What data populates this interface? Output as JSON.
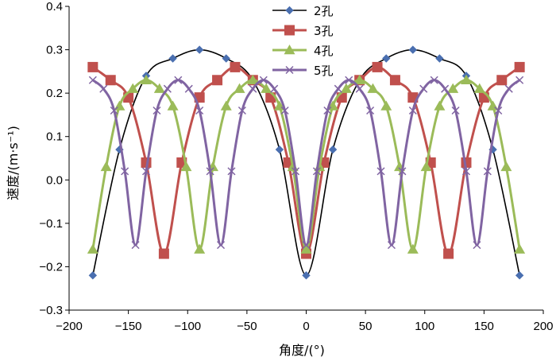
{
  "chart_data": {
    "type": "line",
    "title": "",
    "xlabel": "角度/(°)",
    "ylabel": "速度/(m·s⁻¹)",
    "xlim": [
      -200,
      200
    ],
    "ylim": [
      -0.3,
      0.4
    ],
    "xticks": [
      -200,
      -150,
      -100,
      -50,
      0,
      50,
      100,
      150,
      200
    ],
    "yticks": [
      -0.3,
      -0.2,
      -0.1,
      0.0,
      0.1,
      0.2,
      0.3,
      0.4
    ],
    "xtick_labels": [
      "−200",
      "−150",
      "−100",
      "−50",
      "0",
      "50",
      "100",
      "150",
      "200"
    ],
    "ytick_labels": [
      "−0.3",
      "−0.2",
      "−0.1",
      "0.0",
      "0.1",
      "0.2",
      "0.3",
      "0.4"
    ],
    "grid": false,
    "legend_position": "top-center",
    "series": [
      {
        "name": "2孔",
        "color": "#4a6fb0",
        "marker": "diamond",
        "x": [
          -180,
          -157.5,
          -135,
          -112.5,
          -90,
          -67.5,
          -45,
          -22.5,
          0,
          22.5,
          45,
          67.5,
          90,
          112.5,
          135,
          157.5,
          180
        ],
        "y": [
          -0.22,
          0.07,
          0.24,
          0.28,
          0.3,
          0.28,
          0.23,
          0.07,
          -0.22,
          0.07,
          0.23,
          0.28,
          0.3,
          0.28,
          0.24,
          0.07,
          -0.22
        ]
      },
      {
        "name": "3孔",
        "color": "#c0504d",
        "marker": "square",
        "x": [
          -180,
          -165,
          -150,
          -135,
          -120,
          -105,
          -90,
          -75,
          -60,
          -45,
          -30,
          -15,
          0,
          15,
          30,
          45,
          60,
          75,
          90,
          105,
          120,
          135,
          150,
          165,
          180
        ],
        "y": [
          0.26,
          0.23,
          0.19,
          0.04,
          -0.17,
          0.04,
          0.19,
          0.23,
          0.26,
          0.23,
          0.19,
          0.04,
          -0.17,
          0.04,
          0.19,
          0.23,
          0.26,
          0.23,
          0.19,
          0.04,
          -0.17,
          0.04,
          0.19,
          0.23,
          0.26
        ]
      },
      {
        "name": "4孔",
        "color": "#9bbb59",
        "marker": "triangle",
        "x": [
          -180,
          -168.75,
          -157.5,
          -146.25,
          -135,
          -123.75,
          -112.5,
          -101.25,
          -90,
          -78.75,
          -67.5,
          -56.25,
          -45,
          -33.75,
          -22.5,
          -11.25,
          0,
          11.25,
          22.5,
          33.75,
          45,
          56.25,
          67.5,
          78.75,
          90,
          101.25,
          112.5,
          123.75,
          135,
          146.25,
          157.5,
          168.75,
          180
        ],
        "y": [
          -0.16,
          0.03,
          0.17,
          0.21,
          0.23,
          0.21,
          0.17,
          0.03,
          -0.16,
          0.03,
          0.17,
          0.21,
          0.23,
          0.21,
          0.17,
          0.03,
          -0.16,
          0.03,
          0.17,
          0.21,
          0.23,
          0.21,
          0.17,
          0.03,
          -0.16,
          0.03,
          0.17,
          0.21,
          0.23,
          0.21,
          0.17,
          0.03,
          -0.16
        ]
      },
      {
        "name": "5孔",
        "color": "#8064a2",
        "marker": "x",
        "x": [
          -180,
          -171,
          -162,
          -153,
          -144,
          -135,
          -126,
          -117,
          -108,
          -99,
          -90,
          -81,
          -72,
          -63,
          -54,
          -45,
          -36,
          -27,
          -18,
          -9,
          0,
          9,
          18,
          27,
          36,
          45,
          54,
          63,
          72,
          81,
          90,
          99,
          108,
          117,
          126,
          135,
          144,
          153,
          162,
          171,
          180
        ],
        "y": [
          0.23,
          0.21,
          0.16,
          0.02,
          -0.15,
          0.02,
          0.16,
          0.21,
          0.23,
          0.21,
          0.16,
          0.02,
          -0.15,
          0.02,
          0.16,
          0.21,
          0.23,
          0.21,
          0.16,
          0.02,
          -0.15,
          0.02,
          0.16,
          0.21,
          0.23,
          0.21,
          0.16,
          0.02,
          -0.15,
          0.02,
          0.16,
          0.21,
          0.23,
          0.21,
          0.16,
          0.02,
          -0.15,
          0.02,
          0.16,
          0.21,
          0.23
        ]
      }
    ]
  }
}
